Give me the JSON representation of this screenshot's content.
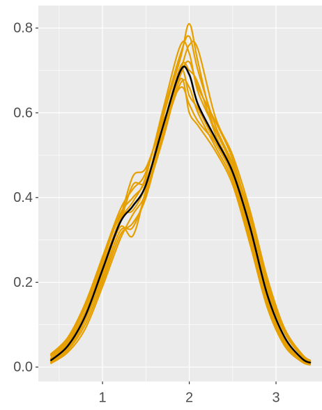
{
  "chart_data": {
    "type": "line",
    "x": [
      0.4,
      0.6,
      0.8,
      1.0,
      1.2,
      1.35,
      1.5,
      1.7,
      1.9,
      2.0,
      2.1,
      2.3,
      2.5,
      2.7,
      2.9,
      3.1,
      3.3,
      3.4
    ],
    "series": [
      {
        "color": "#E69F00",
        "values": [
          0.03,
          0.07,
          0.15,
          0.26,
          0.37,
          0.42,
          0.46,
          0.6,
          0.74,
          0.78,
          0.7,
          0.57,
          0.48,
          0.36,
          0.2,
          0.09,
          0.03,
          0.015
        ]
      },
      {
        "color": "#E69F00",
        "values": [
          0.01,
          0.04,
          0.1,
          0.2,
          0.31,
          0.34,
          0.4,
          0.55,
          0.67,
          0.66,
          0.6,
          0.52,
          0.44,
          0.3,
          0.15,
          0.05,
          0.015,
          0.005
        ]
      },
      {
        "color": "#E69F00",
        "values": [
          0.02,
          0.06,
          0.13,
          0.24,
          0.35,
          0.45,
          0.47,
          0.58,
          0.66,
          0.62,
          0.58,
          0.53,
          0.47,
          0.34,
          0.18,
          0.08,
          0.025,
          0.01
        ]
      },
      {
        "color": "#E69F00",
        "values": [
          0.012,
          0.045,
          0.11,
          0.22,
          0.33,
          0.31,
          0.42,
          0.59,
          0.73,
          0.81,
          0.72,
          0.55,
          0.45,
          0.32,
          0.16,
          0.06,
          0.018,
          0.008
        ]
      },
      {
        "color": "#E69F00",
        "values": [
          0.025,
          0.065,
          0.14,
          0.25,
          0.36,
          0.4,
          0.44,
          0.56,
          0.69,
          0.72,
          0.66,
          0.58,
          0.49,
          0.35,
          0.19,
          0.085,
          0.028,
          0.012
        ]
      },
      {
        "color": "#E69F00",
        "values": [
          0.008,
          0.035,
          0.09,
          0.19,
          0.3,
          0.36,
          0.41,
          0.54,
          0.68,
          0.6,
          0.57,
          0.51,
          0.43,
          0.29,
          0.14,
          0.05,
          0.012,
          0.005
        ]
      },
      {
        "color": "#E69F00",
        "values": [
          0.018,
          0.055,
          0.125,
          0.235,
          0.345,
          0.39,
          0.45,
          0.61,
          0.76,
          0.74,
          0.65,
          0.56,
          0.47,
          0.33,
          0.17,
          0.07,
          0.02,
          0.01
        ]
      },
      {
        "color": "#E69F00",
        "values": [
          0.02,
          0.05,
          0.12,
          0.23,
          0.34,
          0.43,
          0.44,
          0.57,
          0.71,
          0.7,
          0.67,
          0.55,
          0.46,
          0.31,
          0.16,
          0.065,
          0.02,
          0.01
        ]
      },
      {
        "color": "#E69F00",
        "values": [
          0.028,
          0.068,
          0.145,
          0.255,
          0.355,
          0.37,
          0.43,
          0.57,
          0.7,
          0.76,
          0.75,
          0.59,
          0.5,
          0.37,
          0.21,
          0.09,
          0.03,
          0.014
        ]
      },
      {
        "color": "#E69F00",
        "values": [
          0.01,
          0.04,
          0.11,
          0.21,
          0.32,
          0.33,
          0.41,
          0.56,
          0.7,
          0.64,
          0.61,
          0.53,
          0.45,
          0.31,
          0.15,
          0.055,
          0.015,
          0.007
        ]
      },
      {
        "color": "#000000",
        "values": [
          0.015,
          0.05,
          0.12,
          0.23,
          0.34,
          0.38,
          0.43,
          0.57,
          0.7,
          0.69,
          0.62,
          0.54,
          0.46,
          0.33,
          0.17,
          0.07,
          0.02,
          0.01
        ]
      }
    ],
    "xlim": [
      0.26,
      3.53
    ],
    "ylim": [
      -0.034,
      0.853
    ],
    "xticks": [
      1,
      2,
      3
    ],
    "yticks": [
      {
        "value": 0,
        "label": "0.0"
      },
      0.2,
      0.4,
      0.6,
      0.8
    ],
    "x_minor_ticks": [
      0.5,
      1.5,
      2.5
    ],
    "y_minor_ticks": [
      0.1,
      0.3,
      0.5,
      0.7
    ],
    "grid": true
  }
}
